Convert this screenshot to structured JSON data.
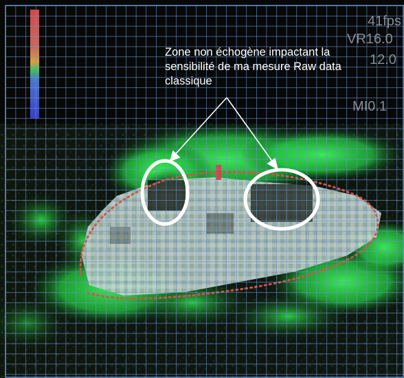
{
  "annotation": {
    "text": "Zone non échogène impactant la sensibilité de ma mesure Raw data classique"
  },
  "scanner_readouts": {
    "frame_rate": "41fps",
    "vr": "VR16.0",
    "db": "12.0",
    "mi": "MI0.1"
  },
  "colors": {
    "grid": "#6f8fd6",
    "tissue_green": "#2ee84a",
    "myocardium_fill": "#a8bfb8",
    "contour_dots": "#d8523e",
    "circle": "#ffffff",
    "arrow": "#ffffff",
    "colorbar": [
      "#d04848",
      "#d8a040",
      "#40c060",
      "#4048d0"
    ]
  },
  "icons": [
    "arrow-icon",
    "ellipse-highlight-icon"
  ]
}
